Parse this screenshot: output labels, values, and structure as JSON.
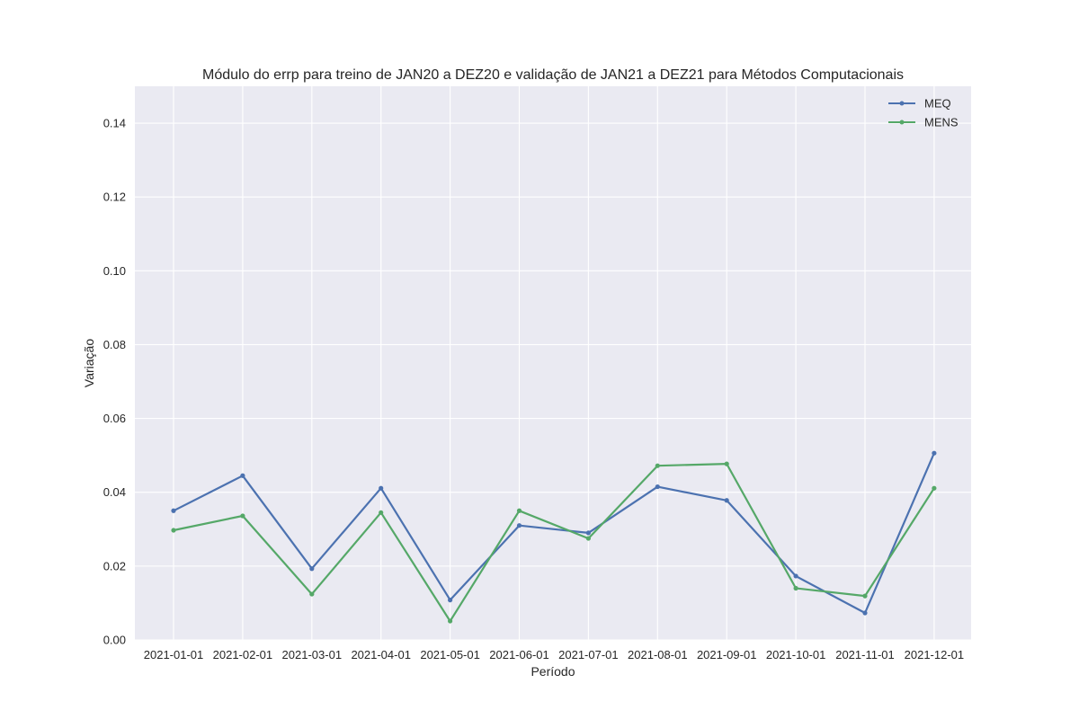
{
  "colors": {
    "background": "#ffffff",
    "plot_background": "#eaeaf2",
    "grid": "#ffffff",
    "text": "#262626"
  },
  "chart_data": {
    "type": "line",
    "title": "Módulo do errp para treino de JAN20 a DEZ20 e validação de JAN21 a DEZ21 para Métodos Computacionais",
    "xlabel": "Período",
    "ylabel": "Variação",
    "categories": [
      "2021-01-01",
      "2021-02-01",
      "2021-03-01",
      "2021-04-01",
      "2021-05-01",
      "2021-06-01",
      "2021-07-01",
      "2021-08-01",
      "2021-09-01",
      "2021-10-01",
      "2021-11-01",
      "2021-12-01"
    ],
    "y_ticks": [
      "0.00",
      "0.02",
      "0.04",
      "0.06",
      "0.08",
      "0.10",
      "0.12",
      "0.14"
    ],
    "ylim": [
      0,
      0.15
    ],
    "grid": true,
    "legend": "top-right",
    "markers": "dot",
    "series": [
      {
        "name": "MEQ",
        "color": "#4c72b0",
        "values": [
          0.035,
          0.0445,
          0.0193,
          0.0411,
          0.0108,
          0.031,
          0.029,
          0.0415,
          0.0378,
          0.0173,
          0.0073,
          0.0506
        ]
      },
      {
        "name": "MENS",
        "color": "#55a868",
        "values": [
          0.0297,
          0.0336,
          0.0124,
          0.0345,
          0.0051,
          0.035,
          0.0275,
          0.0472,
          0.0477,
          0.014,
          0.0119,
          0.0411
        ]
      }
    ]
  }
}
